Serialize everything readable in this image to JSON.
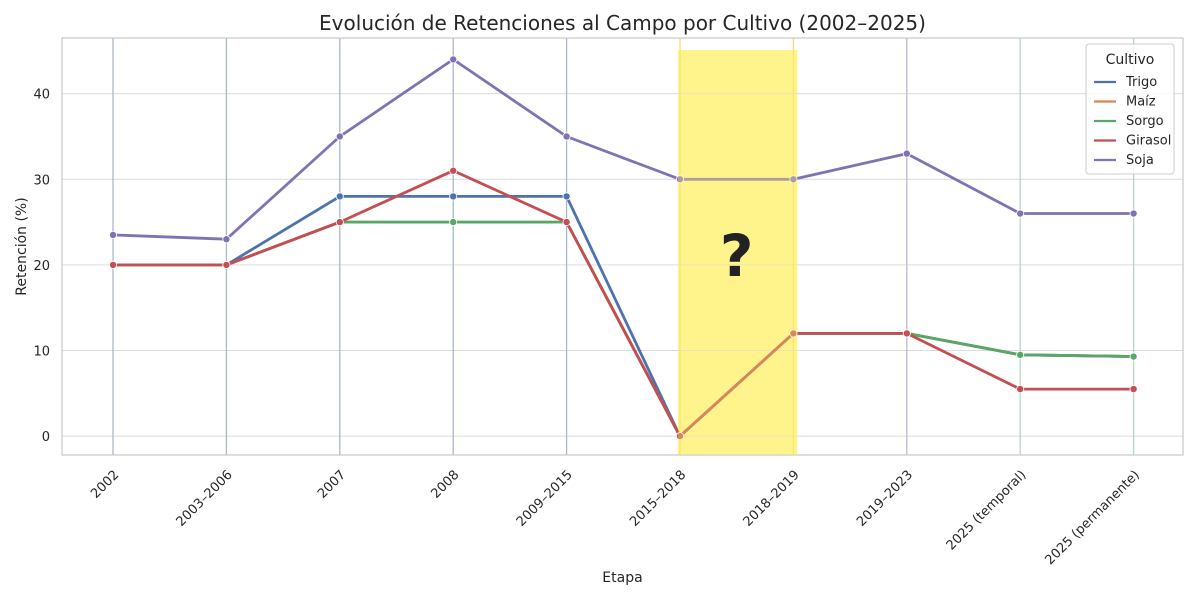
{
  "chart_data": {
    "type": "line",
    "title": "Evolución de Retenciones al Campo por Cultivo (2002–2025)",
    "xlabel": "Etapa",
    "ylabel": "Retención (%)",
    "ylim": [
      -2.2,
      46.5
    ],
    "yticks": [
      0,
      10,
      20,
      30,
      40
    ],
    "grid": true,
    "categories": [
      "2002",
      "2003–2006",
      "2007",
      "2008",
      "2009–2015",
      "2015–2018",
      "2018–2019",
      "2019–2023",
      "2025 (temporal)",
      "2025 (permanente)"
    ],
    "legend": {
      "title": "Cultivo",
      "placement": "top-right"
    },
    "series": [
      {
        "name": "Trigo",
        "color": "#4c72b0",
        "values": [
          20,
          20,
          28,
          28,
          28,
          0,
          12,
          12,
          9.5,
          9.3
        ]
      },
      {
        "name": "Maíz",
        "color": "#dd8452",
        "values": [
          20,
          20,
          25,
          25,
          25,
          0,
          12,
          12,
          9.5,
          9.3
        ]
      },
      {
        "name": "Sorgo",
        "color": "#55a868",
        "values": [
          20,
          20,
          25,
          25,
          25,
          0,
          12,
          12,
          9.5,
          9.3
        ]
      },
      {
        "name": "Girasol",
        "color": "#c44e52",
        "values": [
          20,
          20,
          25,
          31,
          25,
          0,
          12,
          12,
          5.5,
          5.5
        ]
      },
      {
        "name": "Soja",
        "color": "#8172b3",
        "values": [
          23.5,
          23,
          35,
          44,
          35,
          30,
          30,
          33,
          26,
          26
        ]
      }
    ],
    "highlight": {
      "from": "2015–2018",
      "to": "2018–2019",
      "color": "#fff176",
      "label": "?"
    },
    "vertical_lines": [
      {
        "at": "2002",
        "color": "#aab8cc"
      },
      {
        "at": "2003–2006",
        "color": "#aab8cc"
      },
      {
        "at": "2007",
        "color": "#aab8cc"
      },
      {
        "at": "2008",
        "color": "#aab8cc"
      },
      {
        "at": "2009–2015",
        "color": "#aab8cc"
      },
      {
        "at": "2015–2018",
        "color": "#f3df6a"
      },
      {
        "at": "2018–2019",
        "color": "#f3df6a"
      },
      {
        "at": "2019–2023",
        "color": "#c2b6d6"
      },
      {
        "at": "2025 (temporal)",
        "color": "#b6d6c6"
      },
      {
        "at": "2025 (permanente)",
        "color": "#b6d6c6"
      }
    ]
  }
}
